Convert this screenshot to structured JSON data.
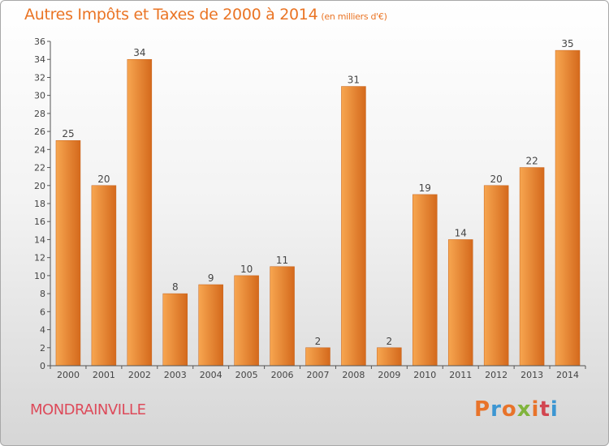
{
  "page": {
    "title": "Autres Impôts et Taxes de 2000 à 2014",
    "title_unit": "(en milliers d'€)",
    "city": "MONDRAINVILLE",
    "brand": "Proxiti"
  },
  "colors": {
    "accent": "#ea7424",
    "city": "#dd4a5a",
    "bar_light": "#f7a650",
    "bar_dark": "#d4691c",
    "brand_letters": [
      "#e8732a",
      "#3c96d2",
      "#e8732a",
      "#80b43c",
      "#e8732a",
      "#d24650",
      "#3c96d2"
    ]
  },
  "chart_data": {
    "type": "bar",
    "title": "Autres Impôts et Taxes de 2000 à 2014",
    "subtitle": "(en milliers d'€)",
    "xlabel": "",
    "ylabel": "",
    "categories": [
      "2000",
      "2001",
      "2002",
      "2003",
      "2004",
      "2005",
      "2006",
      "2007",
      "2008",
      "2009",
      "2010",
      "2011",
      "2012",
      "2013",
      "2014"
    ],
    "values": [
      25,
      20,
      34,
      8,
      9,
      10,
      11,
      2,
      31,
      2,
      19,
      14,
      20,
      22,
      35
    ],
    "ylim": [
      0,
      36
    ],
    "ytick_step": 2,
    "grid": false,
    "data_labels": true,
    "legend": "none"
  }
}
